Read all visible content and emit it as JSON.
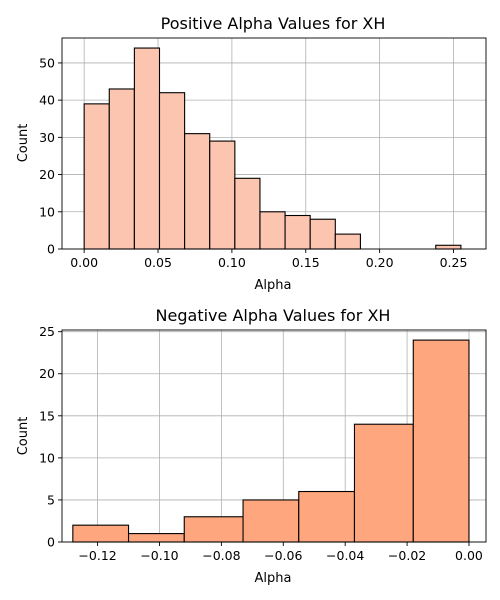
{
  "chart_data": [
    {
      "type": "bar",
      "title": "Positive Alpha Values for XH",
      "xlabel": "Alpha",
      "ylabel": "Count",
      "xlim": [
        -0.015,
        0.272
      ],
      "ylim": [
        0,
        56.7
      ],
      "xticks": [
        0.0,
        0.05,
        0.1,
        0.15,
        0.2,
        0.25
      ],
      "xtick_labels": [
        "0.00",
        "0.05",
        "0.10",
        "0.15",
        "0.20",
        "0.25"
      ],
      "yticks": [
        0,
        10,
        20,
        30,
        40,
        50
      ],
      "ytick_labels": [
        "0",
        "10",
        "20",
        "30",
        "40",
        "50"
      ],
      "bin_edges": [
        0.0,
        0.017,
        0.034,
        0.051,
        0.068,
        0.085,
        0.102,
        0.119,
        0.136,
        0.153,
        0.17,
        0.187,
        0.204,
        0.221,
        0.238,
        0.255
      ],
      "values": [
        39,
        43,
        54,
        42,
        31,
        29,
        19,
        10,
        9,
        8,
        4,
        0,
        0,
        0,
        1
      ],
      "grid": true,
      "color": "#fcc5b0"
    },
    {
      "type": "bar",
      "title": "Negative Alpha Values for XH",
      "xlabel": "Alpha",
      "ylabel": "Count",
      "xlim": [
        -0.1315,
        0.0055
      ],
      "ylim": [
        0,
        25.2
      ],
      "xticks": [
        -0.12,
        -0.1,
        -0.08,
        -0.06,
        -0.04,
        -0.02,
        0.0
      ],
      "xtick_labels": [
        "−0.12",
        "−0.10",
        "−0.08",
        "−0.06",
        "−0.04",
        "−0.02",
        "0.00"
      ],
      "yticks": [
        0,
        5,
        10,
        15,
        20,
        25
      ],
      "ytick_labels": [
        "0",
        "5",
        "10",
        "15",
        "20",
        "25"
      ],
      "bin_edges": [
        -0.128,
        -0.11,
        -0.092,
        -0.073,
        -0.055,
        -0.037,
        -0.018,
        0.0
      ],
      "values": [
        2,
        1,
        3,
        5,
        6,
        14,
        24
      ],
      "grid": true,
      "color": "#fea67e"
    }
  ]
}
